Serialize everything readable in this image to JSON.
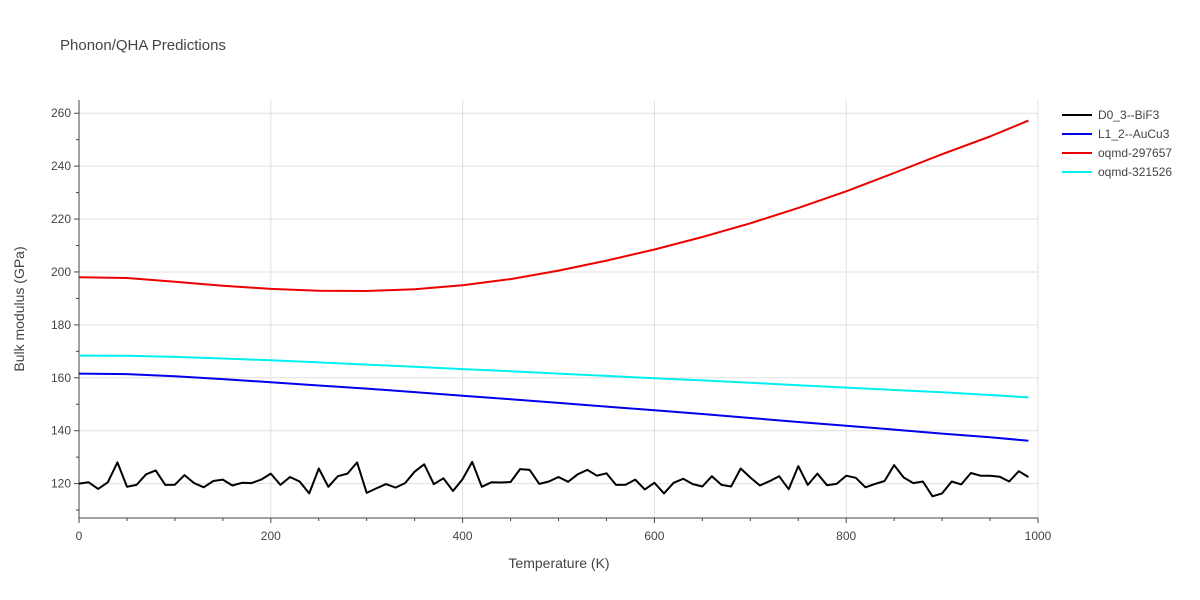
{
  "chart_data": {
    "type": "line",
    "title": "Phonon/QHA Predictions",
    "xlabel": "Temperature (K)",
    "ylabel": "Bulk modulus (GPa)",
    "xlim": [
      0,
      1000
    ],
    "ylim": [
      107,
      265
    ],
    "xticks": [
      0,
      200,
      400,
      600,
      800,
      1000
    ],
    "yticks": [
      120,
      140,
      160,
      180,
      200,
      220,
      240,
      260
    ],
    "grid": true,
    "legend_position": "top-right",
    "series": [
      {
        "name": "D0_3--BiF3",
        "color": "#000000",
        "x": [
          0,
          10,
          20,
          30,
          40,
          50,
          60,
          70,
          80,
          90,
          100,
          110,
          120,
          130,
          140,
          150,
          160,
          170,
          180,
          190,
          200,
          210,
          220,
          230,
          240,
          250,
          260,
          270,
          280,
          290,
          300,
          310,
          320,
          330,
          340,
          350,
          360,
          370,
          380,
          390,
          400,
          410,
          420,
          430,
          440,
          450,
          460,
          470,
          480,
          490,
          500,
          510,
          520,
          530,
          540,
          550,
          560,
          570,
          580,
          590,
          600,
          610,
          620,
          630,
          640,
          650,
          660,
          670,
          680,
          690,
          700,
          710,
          720,
          730,
          740,
          750,
          760,
          770,
          780,
          790,
          800,
          810,
          820,
          830,
          840,
          850,
          860,
          870,
          880,
          890,
          900,
          910,
          920,
          930,
          940,
          950,
          960,
          970,
          980,
          990
        ],
        "y": [
          120.0,
          120.5,
          118.0,
          120.5,
          128.0,
          118.8,
          119.5,
          123.5,
          125.0,
          119.5,
          119.6,
          123.2,
          120.2,
          118.6,
          121.0,
          121.5,
          119.3,
          120.3,
          120.2,
          121.5,
          123.8,
          119.5,
          122.5,
          120.8,
          116.3,
          125.7,
          118.8,
          122.8,
          123.8,
          128.0,
          116.5,
          118.2,
          119.8,
          118.5,
          120.2,
          124.5,
          127.3,
          119.8,
          122.0,
          117.2,
          121.7,
          128.2,
          118.8,
          120.5,
          120.4,
          120.6,
          125.5,
          125.2,
          119.9,
          120.8,
          122.5,
          120.7,
          123.5,
          125.2,
          123.0,
          123.9,
          119.5,
          119.6,
          121.5,
          117.8,
          120.3,
          116.3,
          120.3,
          121.8,
          119.8,
          118.9,
          122.8,
          119.5,
          118.9,
          125.7,
          122.3,
          119.3,
          120.9,
          122.8,
          117.9,
          126.6,
          119.5,
          123.8,
          119.4,
          119.9,
          123.0,
          122.2,
          118.6,
          119.9,
          121.0,
          127.0,
          122.3,
          120.2,
          120.8,
          115.2,
          116.3,
          120.8,
          119.7,
          124.0,
          123.0,
          123.0,
          122.6,
          120.8,
          124.7,
          122.5
        ]
      },
      {
        "name": "L1_2--AuCu3",
        "color": "#0000ee",
        "x": [
          0,
          50,
          100,
          150,
          200,
          250,
          300,
          350,
          400,
          450,
          500,
          550,
          600,
          650,
          700,
          750,
          800,
          850,
          900,
          950,
          990
        ],
        "y": [
          161.6,
          161.4,
          160.6,
          159.5,
          158.3,
          157.1,
          155.9,
          154.6,
          153.2,
          151.9,
          150.5,
          149.1,
          147.7,
          146.3,
          144.8,
          143.3,
          141.9,
          140.4,
          138.9,
          137.5,
          136.2
        ]
      },
      {
        "name": "oqmd-297657",
        "color": "#ee0000",
        "x": [
          0,
          50,
          100,
          150,
          200,
          250,
          300,
          350,
          400,
          450,
          500,
          550,
          600,
          650,
          700,
          750,
          800,
          850,
          900,
          950,
          990
        ],
        "y": [
          198.0,
          197.7,
          196.3,
          194.8,
          193.6,
          192.9,
          192.8,
          193.5,
          195.0,
          197.3,
          200.5,
          204.3,
          208.5,
          213.2,
          218.4,
          224.2,
          230.5,
          237.4,
          244.5,
          251.2,
          257.2
        ]
      },
      {
        "name": "oqmd-321526",
        "color": "#00f0f0",
        "x": [
          0,
          50,
          100,
          150,
          200,
          250,
          300,
          350,
          400,
          450,
          500,
          550,
          600,
          650,
          700,
          750,
          800,
          850,
          900,
          950,
          990
        ],
        "y": [
          168.4,
          168.3,
          167.9,
          167.3,
          166.6,
          165.8,
          165.0,
          164.2,
          163.3,
          162.5,
          161.6,
          160.7,
          159.8,
          159.0,
          158.1,
          157.2,
          156.3,
          155.4,
          154.5,
          153.5,
          152.6
        ]
      }
    ]
  }
}
